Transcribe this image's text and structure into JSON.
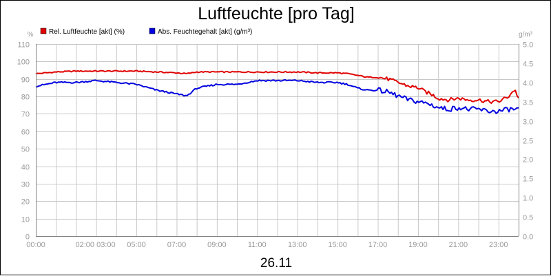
{
  "chart_data": {
    "type": "line",
    "title": "Luftfeuchte [pro Tag]",
    "date_label": "26.11",
    "left_unit": "%",
    "right_unit": "g/m³",
    "x_ticks": [
      "00:00",
      "02:00 03:00",
      "05:00",
      "07:00",
      "09:00",
      "11:00",
      "13:00",
      "15:00",
      "17:00",
      "19:00",
      "21:00",
      "23:00"
    ],
    "y_left": {
      "min": 0,
      "max": 110,
      "ticks": [
        0,
        10,
        20,
        30,
        40,
        50,
        60,
        70,
        80,
        90,
        100,
        110
      ]
    },
    "y_right": {
      "min": 0,
      "max": 5,
      "ticks": [
        "0.0",
        "0.5",
        "1.0",
        "1.5",
        "2.0",
        "2.5",
        "3.0",
        "3.5",
        "4.0",
        "4.5",
        "5.0"
      ]
    },
    "grid": true,
    "legend": "top-left",
    "x_range_hours": [
      0,
      24
    ],
    "series": [
      {
        "name": "Rel. Luftfeuchte [akt] (%)",
        "color": "#e00000",
        "axis": "left",
        "points": [
          [
            0,
            93
          ],
          [
            0.5,
            93.5
          ],
          [
            1,
            94
          ],
          [
            2,
            94.5
          ],
          [
            3,
            94.5
          ],
          [
            4,
            94.5
          ],
          [
            5,
            94.5
          ],
          [
            6,
            94
          ],
          [
            7,
            93.5
          ],
          [
            7.5,
            93
          ],
          [
            8,
            94
          ],
          [
            9,
            94
          ],
          [
            10,
            94
          ],
          [
            11,
            94
          ],
          [
            12,
            94
          ],
          [
            13,
            94
          ],
          [
            14,
            93.5
          ],
          [
            15,
            93.5
          ],
          [
            15.5,
            93
          ],
          [
            16,
            92
          ],
          [
            16.5,
            91
          ],
          [
            17,
            91
          ],
          [
            17.5,
            90
          ],
          [
            18,
            88
          ],
          [
            18.5,
            86
          ],
          [
            19,
            85
          ],
          [
            19.3,
            83
          ],
          [
            19.7,
            81
          ],
          [
            20,
            79
          ],
          [
            20.5,
            78
          ],
          [
            21,
            79
          ],
          [
            21.5,
            78
          ],
          [
            22,
            78
          ],
          [
            22.5,
            77
          ],
          [
            23,
            77
          ],
          [
            23.5,
            80
          ],
          [
            23.8,
            84
          ],
          [
            24,
            79
          ]
        ]
      },
      {
        "name": "Abs. Feuchtegehalt [akt] (g/m³)",
        "color": "#0000e0",
        "axis": "right",
        "points": [
          [
            0,
            3.9
          ],
          [
            1,
            4.0
          ],
          [
            2,
            4.0
          ],
          [
            3,
            4.05
          ],
          [
            4,
            4.0
          ],
          [
            5,
            3.95
          ],
          [
            6,
            3.8
          ],
          [
            6.5,
            3.75
          ],
          [
            7,
            3.7
          ],
          [
            7.5,
            3.65
          ],
          [
            8,
            3.85
          ],
          [
            9,
            3.95
          ],
          [
            10,
            3.95
          ],
          [
            11,
            4.05
          ],
          [
            12,
            4.05
          ],
          [
            13,
            4.05
          ],
          [
            14,
            4.0
          ],
          [
            15,
            4.0
          ],
          [
            15.5,
            3.95
          ],
          [
            16,
            3.85
          ],
          [
            16.5,
            3.8
          ],
          [
            17,
            3.8
          ],
          [
            17.5,
            3.75
          ],
          [
            18,
            3.65
          ],
          [
            18.5,
            3.55
          ],
          [
            19,
            3.5
          ],
          [
            19.5,
            3.45
          ],
          [
            20,
            3.35
          ],
          [
            20.5,
            3.3
          ],
          [
            21,
            3.35
          ],
          [
            21.5,
            3.3
          ],
          [
            22,
            3.3
          ],
          [
            22.5,
            3.25
          ],
          [
            23,
            3.25
          ],
          [
            23.5,
            3.3
          ],
          [
            24,
            3.3
          ]
        ]
      }
    ]
  }
}
